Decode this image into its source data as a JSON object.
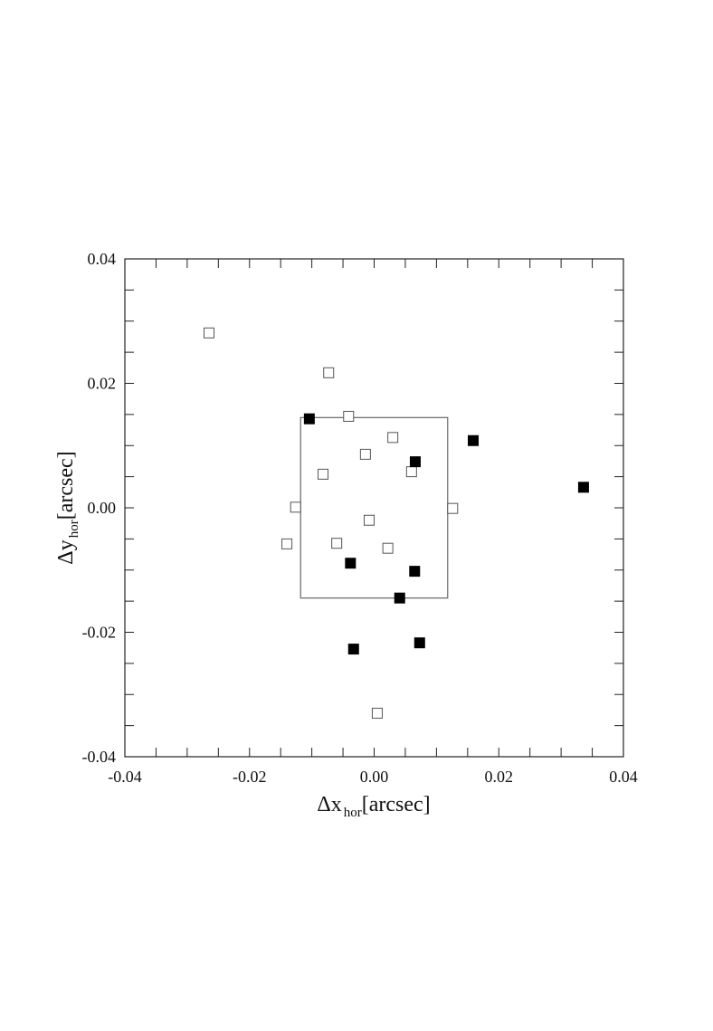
{
  "chart_data": {
    "type": "scatter",
    "xlabel": {
      "main": "Δx",
      "sub": "hor",
      "unit": "[arcsec]"
    },
    "ylabel": {
      "main": "Δy",
      "sub": "hor",
      "unit": "[arcsec]"
    },
    "xlim": [
      -0.04,
      0.04
    ],
    "ylim": [
      -0.04,
      0.04
    ],
    "xticks": [
      -0.04,
      -0.02,
      {
        "value": 0,
        "label": "0.00"
      },
      0.02,
      0.04
    ],
    "yticks": [
      -0.04,
      -0.02,
      {
        "value": 0,
        "label": "0.00"
      },
      0.02,
      0.04
    ],
    "xminorticks": [
      -0.035,
      -0.03,
      -0.025,
      -0.015,
      -0.01,
      -0.005,
      0.005,
      0.01,
      0.015,
      0.025,
      0.03,
      0.035
    ],
    "yminorticks": [
      -0.035,
      -0.03,
      -0.025,
      -0.015,
      -0.01,
      -0.005,
      0.005,
      0.01,
      0.015,
      0.025,
      0.03,
      0.035
    ],
    "box": {
      "x": [
        -0.0118,
        0.0118
      ],
      "y": [
        -0.0145,
        0.0145
      ],
      "color": "#666666"
    },
    "series": [
      {
        "filled": false,
        "color": "#555555",
        "x": [
          -0.0265,
          -0.0073,
          -0.0041,
          0.003,
          -0.0014,
          -0.0082,
          0.006,
          -0.0126,
          0.0126,
          -0.0008,
          -0.014,
          -0.006,
          0.0022,
          0.0005
        ],
        "y": [
          0.0281,
          0.0217,
          0.0147,
          0.0113,
          0.0086,
          0.0054,
          0.0058,
          0.0001,
          -0.0001,
          -0.002,
          -0.0058,
          -0.0057,
          -0.0065,
          -0.033
        ]
      },
      {
        "filled": true,
        "color": "#000000",
        "x": [
          -0.0104,
          0.0066,
          0.0159,
          0.0336,
          -0.0038,
          0.0065,
          0.0041,
          -0.0033,
          0.0073
        ],
        "y": [
          0.0143,
          0.0074,
          0.0108,
          0.0033,
          -0.0089,
          -0.0102,
          -0.0145,
          -0.0227,
          -0.0217
        ]
      }
    ]
  }
}
